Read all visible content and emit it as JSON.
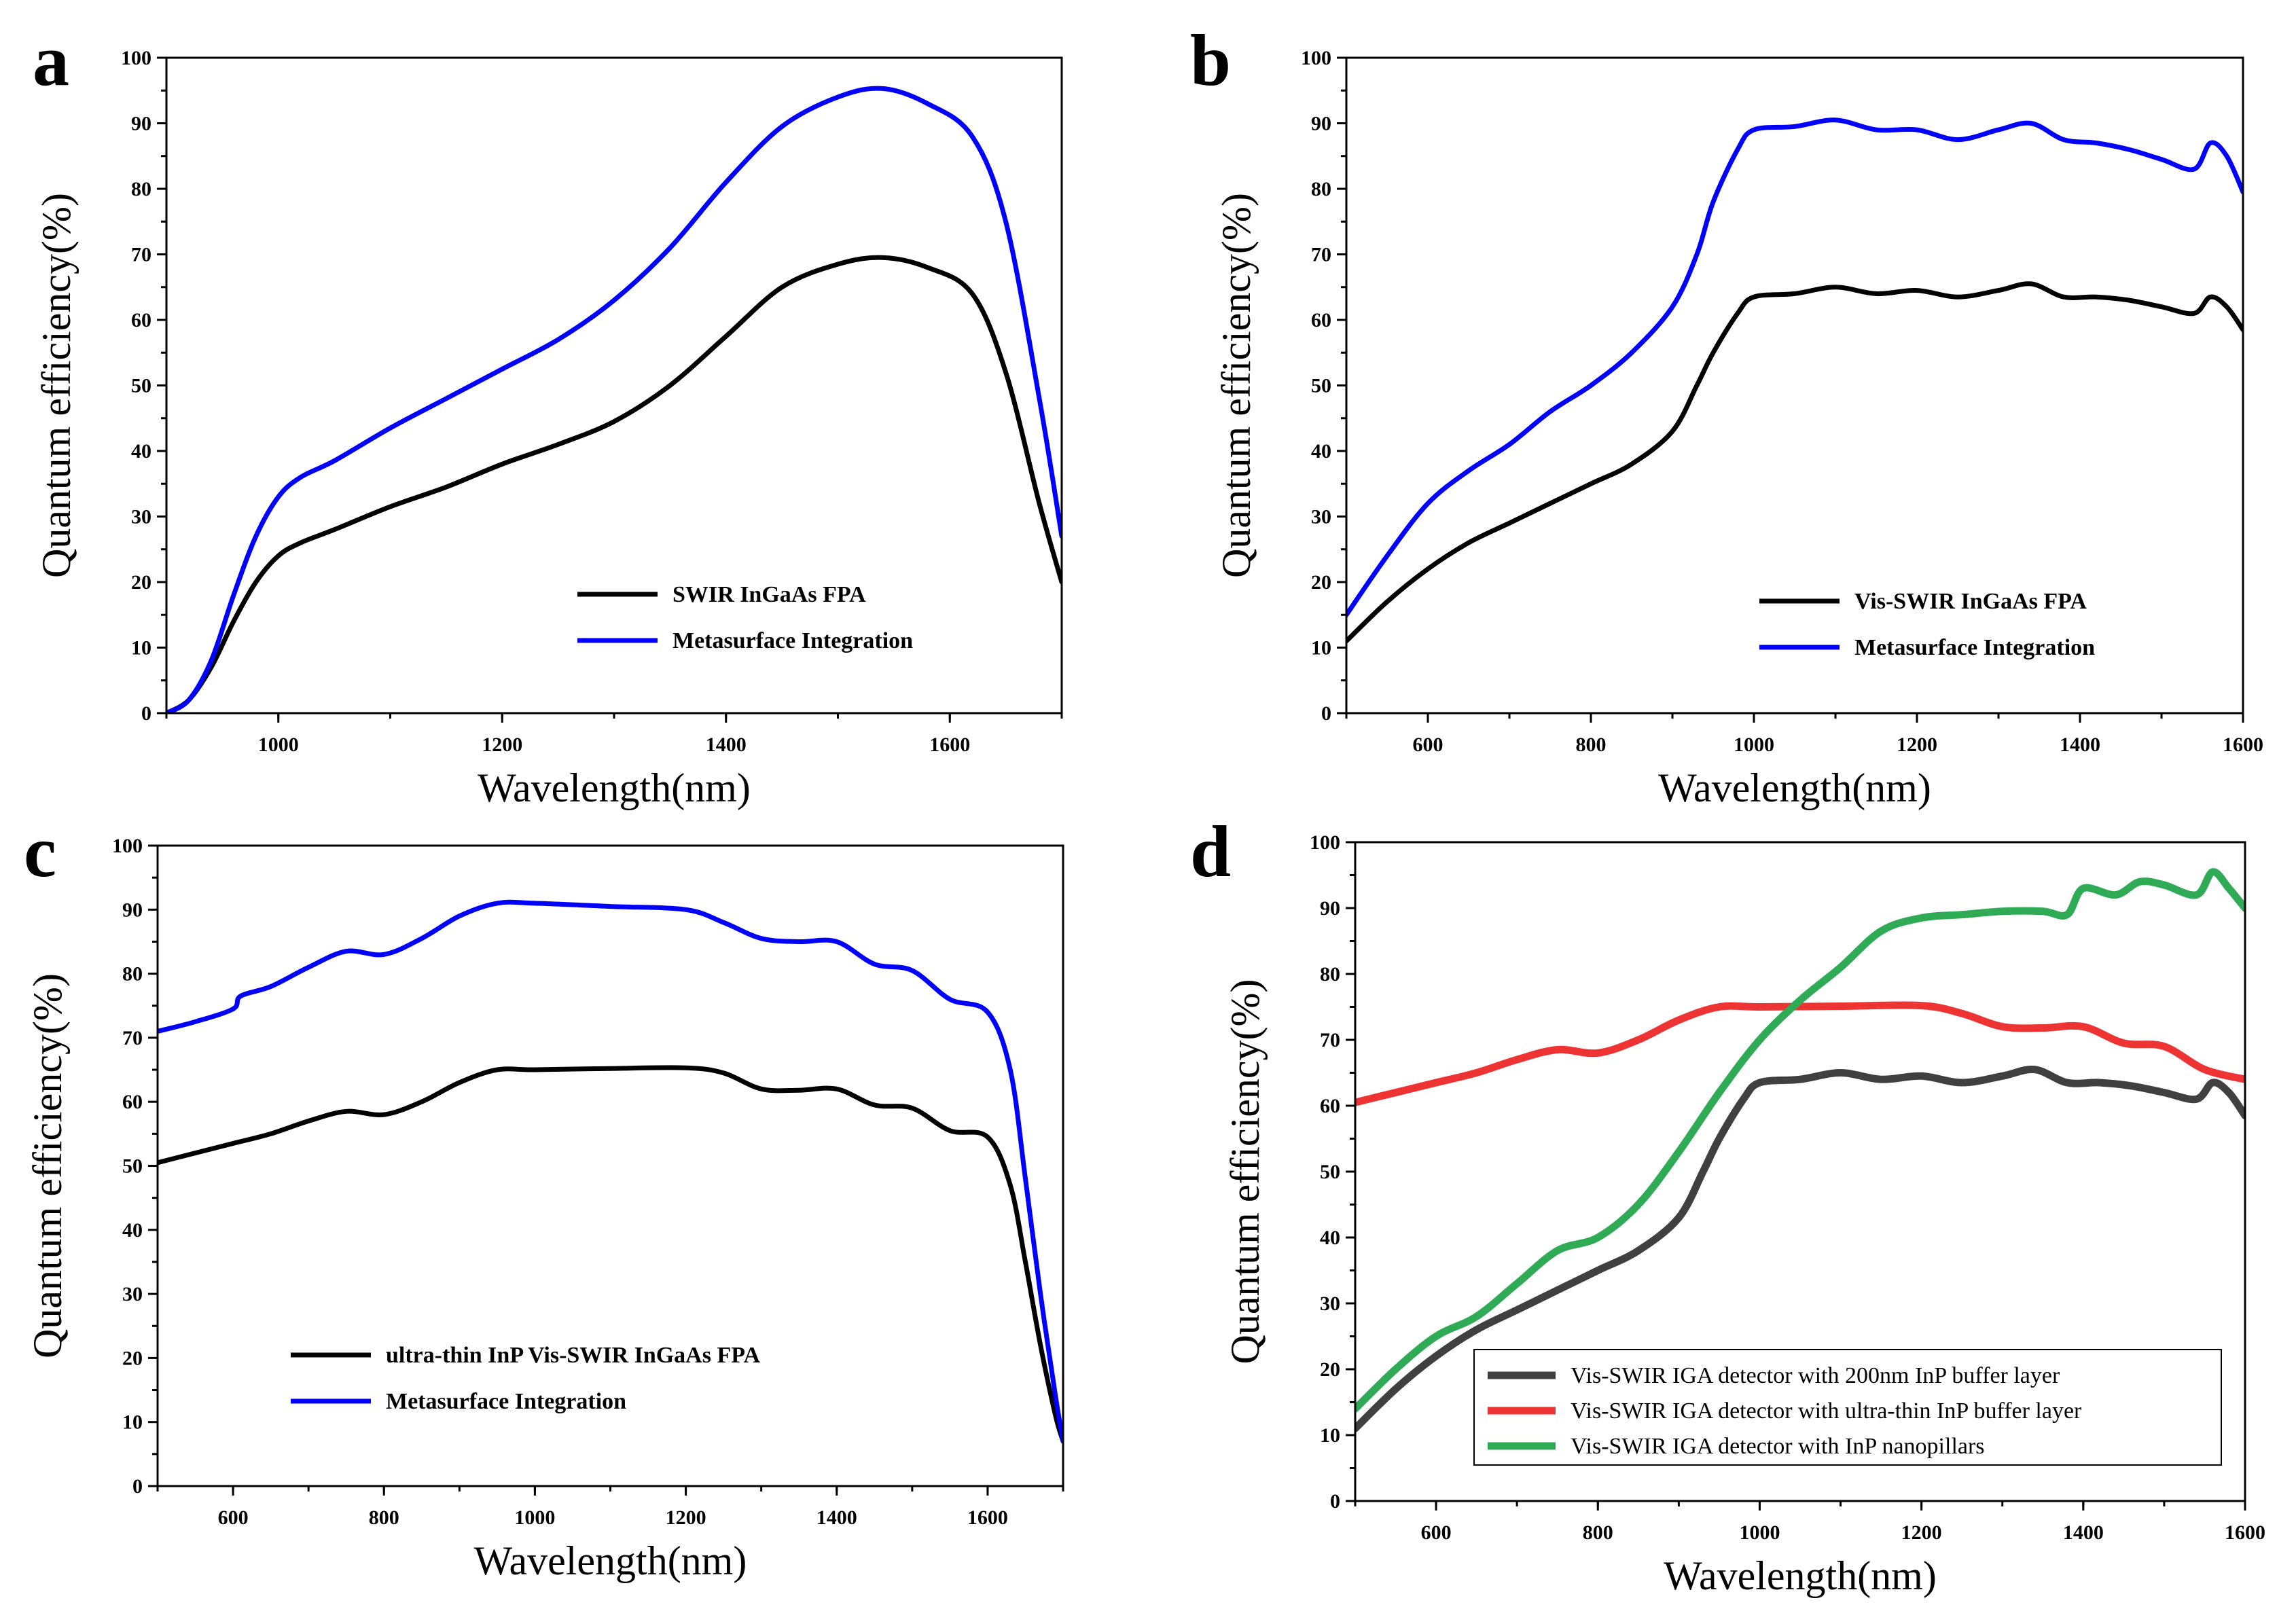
{
  "chart_data": [
    {
      "panel": "a",
      "type": "line",
      "title": "",
      "xlabel": "Wavelength(nm)",
      "ylabel": "Quantum efficiency(%)",
      "xlim": [
        900,
        1700
      ],
      "ylim": [
        0,
        100
      ],
      "xticks": [
        1000,
        1200,
        1400,
        1600
      ],
      "yticks": [
        0,
        10,
        20,
        30,
        40,
        50,
        60,
        70,
        80,
        90,
        100
      ],
      "legend_position": "lower-right",
      "legend_style": "bold",
      "series": [
        {
          "name": "SWIR InGaAs FPA",
          "color": "#000000",
          "x": [
            900,
            920,
            940,
            960,
            980,
            1000,
            1020,
            1050,
            1100,
            1150,
            1200,
            1250,
            1300,
            1350,
            1400,
            1450,
            1500,
            1540,
            1580,
            1620,
            1650,
            1680,
            1700
          ],
          "y": [
            0,
            2,
            7,
            14,
            20,
            24,
            26,
            28,
            31.5,
            34.5,
            38,
            41,
            44.5,
            50,
            57.5,
            65,
            68.5,
            69.5,
            68,
            64,
            52,
            32,
            20
          ]
        },
        {
          "name": "Metasurface  Integration",
          "color": "#0000ff",
          "x": [
            900,
            920,
            940,
            960,
            980,
            1000,
            1020,
            1050,
            1100,
            1150,
            1200,
            1250,
            1300,
            1350,
            1400,
            1450,
            1500,
            1540,
            1580,
            1620,
            1650,
            1680,
            1700
          ],
          "y": [
            0,
            2,
            8,
            18,
            27,
            33,
            36,
            38.5,
            43.5,
            48,
            52.5,
            57,
            63,
            71,
            81,
            89.5,
            94,
            95.3,
            93,
            88,
            75,
            48,
            27
          ]
        }
      ]
    },
    {
      "panel": "b",
      "type": "line",
      "title": "",
      "xlabel": "Wavelength(nm)",
      "ylabel": "Quantum efficiency(%)",
      "xlim": [
        500,
        1600
      ],
      "ylim": [
        0,
        100
      ],
      "xticks": [
        600,
        800,
        1000,
        1200,
        1400,
        1600
      ],
      "yticks": [
        0,
        10,
        20,
        30,
        40,
        50,
        60,
        70,
        80,
        90,
        100
      ],
      "legend_position": "lower-right",
      "legend_style": "bold",
      "series": [
        {
          "name": "Vis-SWIR InGaAs FPA",
          "color": "#000000",
          "x": [
            500,
            550,
            600,
            650,
            700,
            750,
            800,
            850,
            900,
            930,
            950,
            980,
            1000,
            1050,
            1100,
            1150,
            1200,
            1250,
            1300,
            1340,
            1380,
            1420,
            1460,
            1500,
            1540,
            1560,
            1580,
            1600
          ],
          "y": [
            11,
            17,
            22,
            26,
            29,
            32,
            35,
            38,
            43,
            50,
            55,
            61,
            63.5,
            64,
            65,
            64,
            64.5,
            63.5,
            64.5,
            65.5,
            63.5,
            63.5,
            63,
            62,
            61,
            63.5,
            62,
            58.5
          ]
        },
        {
          "name": "Metasurface  Integration",
          "color": "#0000ff",
          "x": [
            500,
            550,
            600,
            650,
            700,
            750,
            800,
            850,
            900,
            930,
            950,
            980,
            1000,
            1050,
            1100,
            1150,
            1200,
            1250,
            1300,
            1340,
            1380,
            1420,
            1460,
            1500,
            1540,
            1560,
            1580,
            1600
          ],
          "y": [
            15,
            24,
            32,
            37,
            41,
            46,
            50,
            55,
            62,
            70,
            78,
            86,
            89,
            89.5,
            90.5,
            89,
            89,
            87.5,
            89,
            90,
            87.5,
            87,
            86,
            84.5,
            83,
            87,
            85,
            79.5
          ]
        }
      ]
    },
    {
      "panel": "c",
      "type": "line",
      "title": "",
      "xlabel": "Wavelength(nm)",
      "ylabel": "Quantum efficiency(%)",
      "xlim": [
        500,
        1700
      ],
      "ylim": [
        0,
        100
      ],
      "xticks": [
        600,
        800,
        1000,
        1200,
        1400,
        1600
      ],
      "yticks": [
        0,
        10,
        20,
        30,
        40,
        50,
        60,
        70,
        80,
        90,
        100
      ],
      "legend_position": "lower-left",
      "legend_style": "bold",
      "series": [
        {
          "name": "ultra-thin InP Vis-SWIR InGaAs FPA",
          "color": "#000000",
          "x": [
            500,
            550,
            600,
            650,
            700,
            750,
            800,
            850,
            900,
            950,
            1000,
            1100,
            1200,
            1250,
            1300,
            1350,
            1400,
            1450,
            1500,
            1550,
            1600,
            1630,
            1650,
            1670,
            1690,
            1700
          ],
          "y": [
            50.5,
            52,
            53.5,
            55,
            57,
            58.5,
            58,
            60,
            63,
            65,
            65,
            65.2,
            65.3,
            64.5,
            62,
            61.8,
            62,
            59.5,
            59,
            55.5,
            54.5,
            47,
            35,
            22,
            11,
            7
          ]
        },
        {
          "name": "Metasurface  Integration",
          "color": "#0000ff",
          "x": [
            500,
            550,
            600,
            610,
            650,
            700,
            750,
            800,
            850,
            900,
            950,
            1000,
            1100,
            1200,
            1250,
            1300,
            1350,
            1400,
            1450,
            1500,
            1550,
            1600,
            1630,
            1650,
            1670,
            1690,
            1700
          ],
          "y": [
            71,
            72.5,
            74.5,
            76.5,
            78,
            81,
            83.5,
            83,
            85.5,
            89,
            91,
            91,
            90.5,
            90,
            88,
            85.5,
            85,
            85,
            81.5,
            80.5,
            76,
            74,
            65,
            48,
            30,
            14,
            7
          ]
        }
      ]
    },
    {
      "panel": "d",
      "type": "line",
      "title": "",
      "xlabel": "Wavelength(nm)",
      "ylabel": "Quantum efficiency(%)",
      "xlim": [
        500,
        1600
      ],
      "ylim": [
        0,
        100
      ],
      "xticks": [
        600,
        800,
        1000,
        1200,
        1400,
        1600
      ],
      "yticks": [
        0,
        10,
        20,
        30,
        40,
        50,
        60,
        70,
        80,
        90,
        100
      ],
      "legend_position": "bottom-right",
      "legend_style": "boxed",
      "series": [
        {
          "name": "Vis-SWIR IGA detector with 200nm InP buffer layer",
          "color": "#404040",
          "x": [
            500,
            550,
            600,
            650,
            700,
            750,
            800,
            850,
            900,
            930,
            950,
            980,
            1000,
            1050,
            1100,
            1150,
            1200,
            1250,
            1300,
            1340,
            1380,
            1420,
            1460,
            1500,
            1540,
            1560,
            1580,
            1600
          ],
          "y": [
            11,
            17,
            22,
            26,
            29,
            32,
            35,
            38,
            43,
            50,
            55,
            61,
            63.5,
            64,
            65,
            64,
            64.5,
            63.5,
            64.5,
            65.5,
            63.5,
            63.5,
            63,
            62,
            61,
            63.5,
            62,
            58.5
          ]
        },
        {
          "name": "Vis-SWIR IGA detector with ultra-thin InP buffer layer",
          "color": "#ee3333",
          "x": [
            500,
            550,
            600,
            650,
            700,
            750,
            800,
            850,
            900,
            950,
            1000,
            1100,
            1200,
            1250,
            1300,
            1350,
            1400,
            1450,
            1500,
            1550,
            1600
          ],
          "y": [
            60.5,
            62,
            63.5,
            65,
            67,
            68.5,
            68,
            70,
            73,
            75,
            75,
            75.1,
            75.2,
            74,
            72,
            71.8,
            72,
            69.5,
            69,
            65.5,
            64
          ]
        },
        {
          "name": "Vis-SWIR IGA detector with InP nanopillars",
          "color": "#2faa55",
          "x": [
            500,
            550,
            600,
            650,
            700,
            750,
            800,
            850,
            900,
            950,
            1000,
            1050,
            1100,
            1150,
            1200,
            1250,
            1300,
            1350,
            1380,
            1400,
            1440,
            1470,
            1500,
            1540,
            1560,
            1580,
            1600
          ],
          "y": [
            14,
            20,
            25,
            28,
            33,
            38,
            40,
            45,
            53,
            62,
            70,
            76,
            81,
            86.5,
            88.5,
            89,
            89.5,
            89.5,
            89,
            93,
            92,
            94,
            93.5,
            92,
            95.5,
            93,
            90
          ]
        }
      ]
    }
  ]
}
